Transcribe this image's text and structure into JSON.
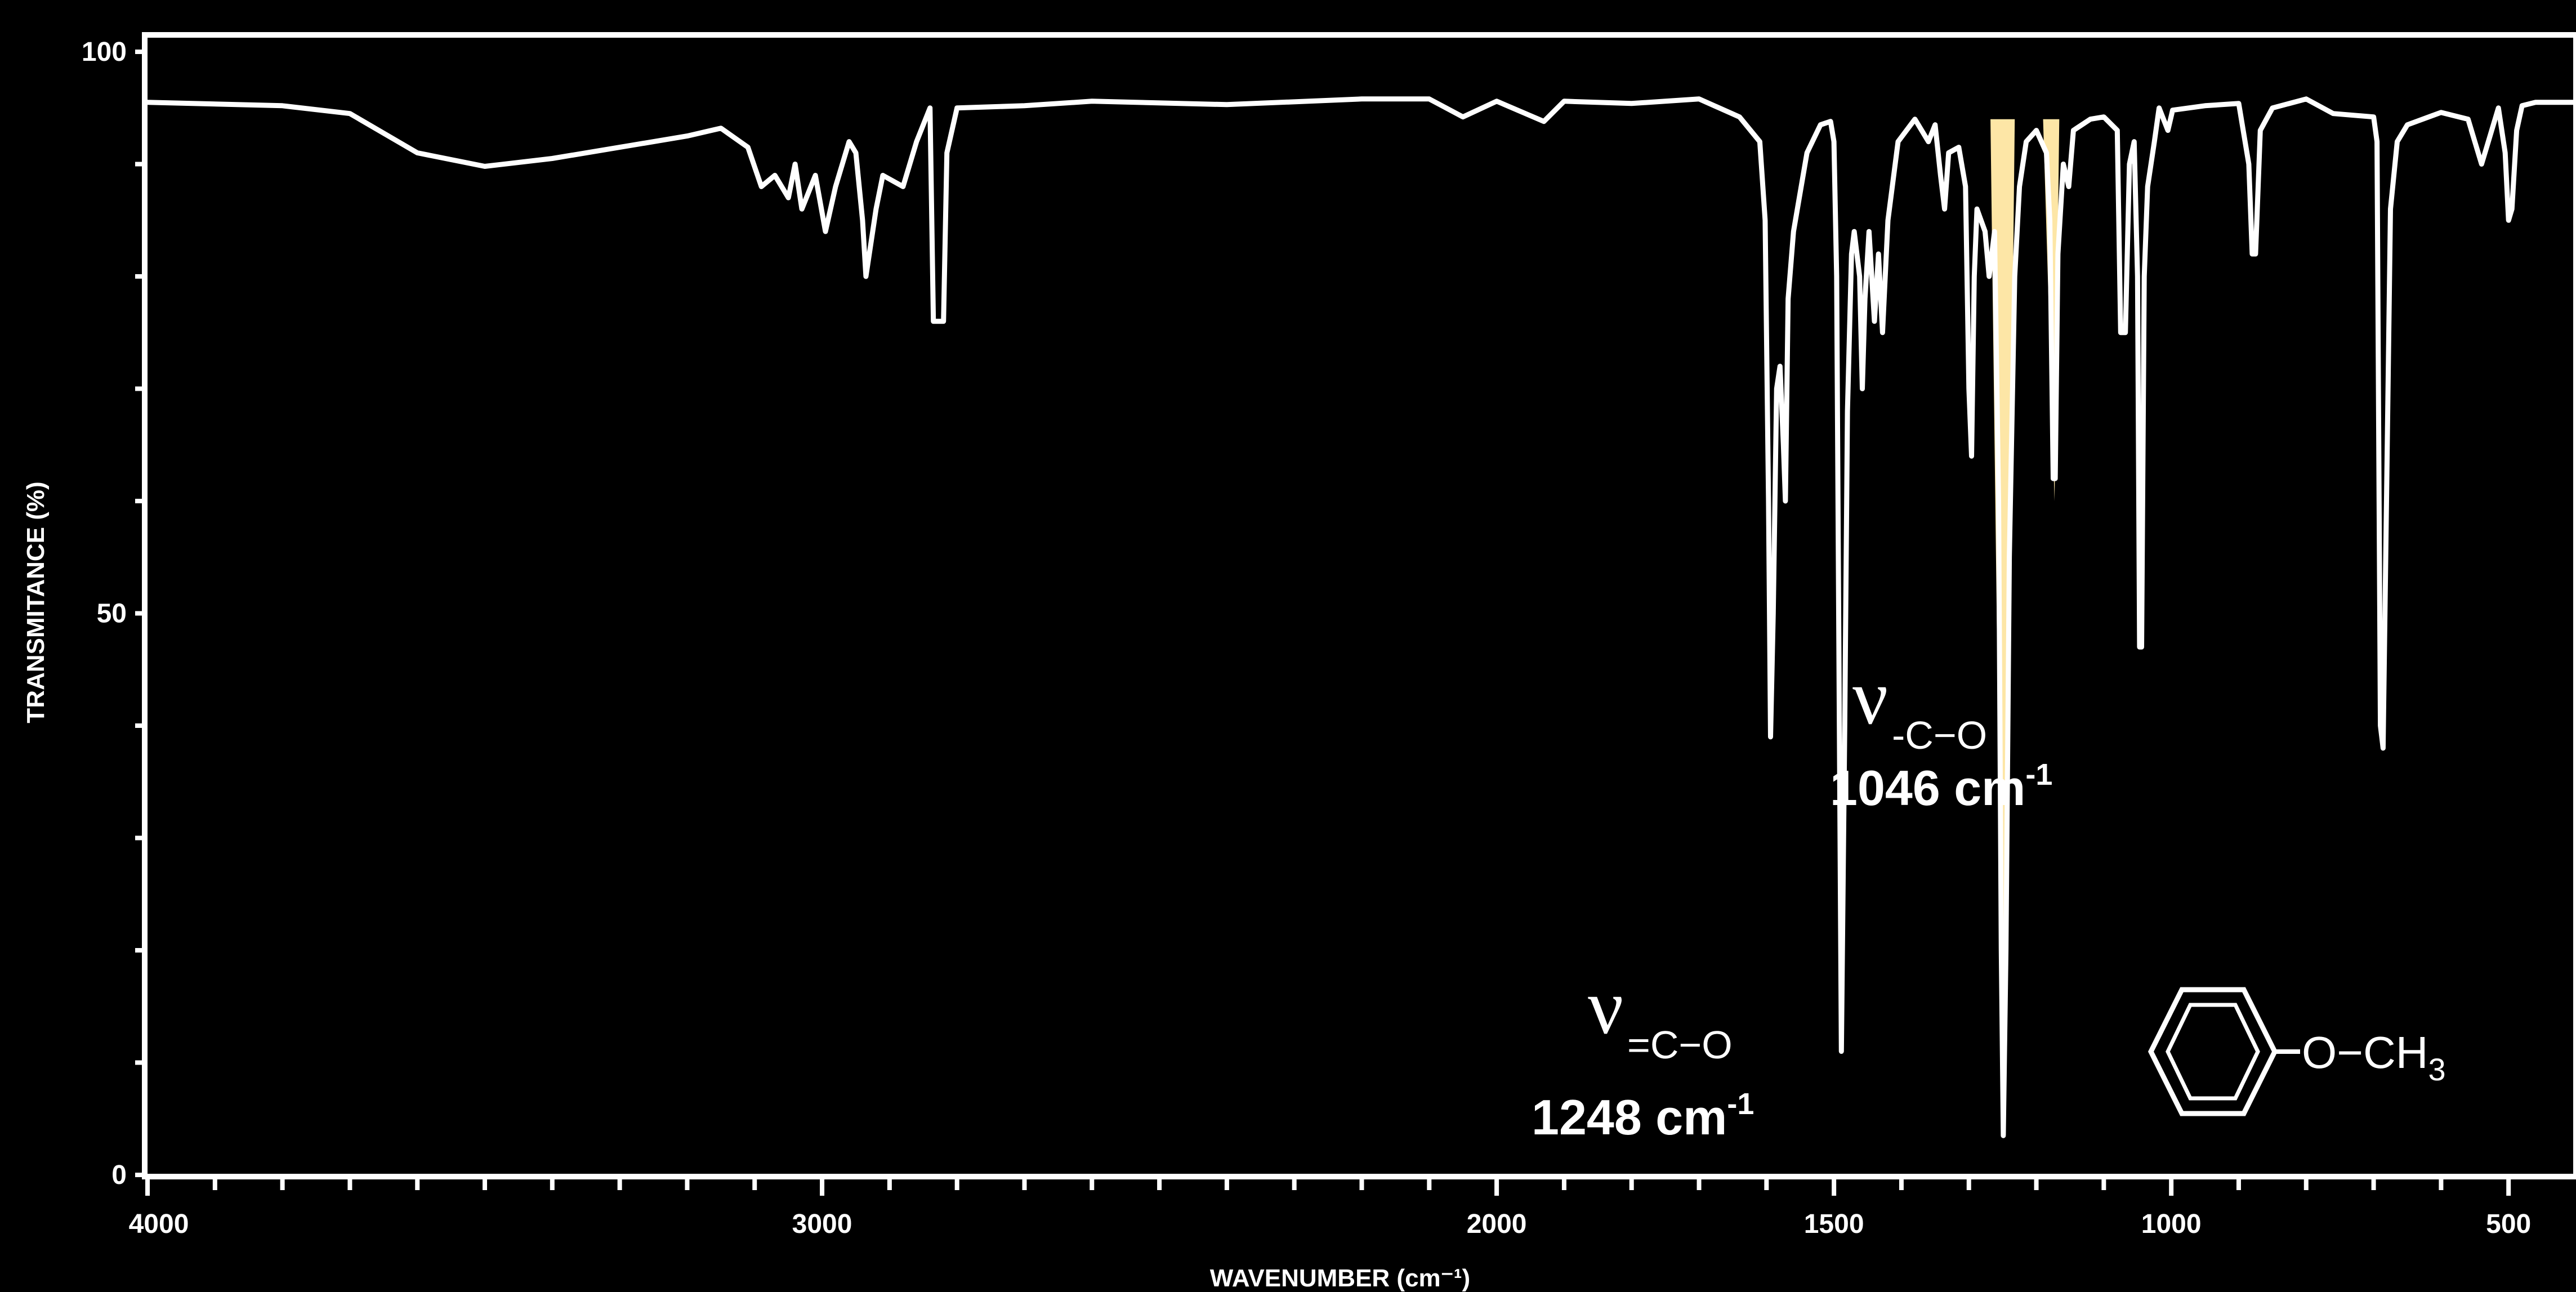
{
  "chart_data": {
    "type": "line",
    "xlabel": "WAVENUMBER (cm⁻¹)",
    "ylabel": "TRANSMITANCE (%)",
    "xlim": [
      4000,
      400
    ],
    "ylim": [
      0,
      100
    ],
    "x_tick_labels": [
      "4000",
      "3000",
      "2000",
      "1500",
      "1000",
      "500"
    ],
    "y_tick_labels": [
      "0",
      "50",
      "100"
    ],
    "grid": false,
    "colors": {
      "background": "#000000",
      "trace": "#ffffff",
      "highlight": "#fde6a6"
    },
    "series": [
      {
        "points": [
          [
            4000,
            95.5
          ],
          [
            3800,
            95.2
          ],
          [
            3700,
            94.5
          ],
          [
            3600,
            91
          ],
          [
            3500,
            89.8
          ],
          [
            3400,
            90.5
          ],
          [
            3300,
            91.5
          ],
          [
            3200,
            92.5
          ],
          [
            3150,
            93.2
          ],
          [
            3110,
            91.5
          ],
          [
            3090,
            88
          ],
          [
            3070,
            89
          ],
          [
            3050,
            87
          ],
          [
            3040,
            90
          ],
          [
            3030,
            86
          ],
          [
            3010,
            89
          ],
          [
            2995,
            84
          ],
          [
            2980,
            88
          ],
          [
            2960,
            92
          ],
          [
            2950,
            91
          ],
          [
            2940,
            85
          ],
          [
            2935,
            80
          ],
          [
            2920,
            86
          ],
          [
            2910,
            89
          ],
          [
            2880,
            88
          ],
          [
            2860,
            92
          ],
          [
            2840,
            95
          ],
          [
            2835,
            76
          ],
          [
            2820,
            76
          ],
          [
            2815,
            91
          ],
          [
            2800,
            95
          ],
          [
            2700,
            95.2
          ],
          [
            2600,
            95.6
          ],
          [
            2400,
            95.3
          ],
          [
            2200,
            95.8
          ],
          [
            2100,
            95.8
          ],
          [
            2050,
            94.2
          ],
          [
            2000,
            95.6
          ],
          [
            1930,
            93.8
          ],
          [
            1900,
            95.6
          ],
          [
            1800,
            95.4
          ],
          [
            1700,
            95.8
          ],
          [
            1640,
            94.2
          ],
          [
            1610,
            92
          ],
          [
            1602,
            85
          ],
          [
            1597,
            60
          ],
          [
            1594,
            39
          ],
          [
            1590,
            50
          ],
          [
            1585,
            70
          ],
          [
            1580,
            72
          ],
          [
            1575,
            65
          ],
          [
            1572,
            60
          ],
          [
            1568,
            78
          ],
          [
            1560,
            84
          ],
          [
            1540,
            91
          ],
          [
            1520,
            93.5
          ],
          [
            1505,
            93.8
          ],
          [
            1500,
            92
          ],
          [
            1496,
            80
          ],
          [
            1492,
            40
          ],
          [
            1489,
            11
          ],
          [
            1484,
            40
          ],
          [
            1480,
            68
          ],
          [
            1474,
            82
          ],
          [
            1470,
            84
          ],
          [
            1462,
            80
          ],
          [
            1458,
            70
          ],
          [
            1454,
            78
          ],
          [
            1448,
            84
          ],
          [
            1440,
            76
          ],
          [
            1434,
            82
          ],
          [
            1428,
            75
          ],
          [
            1420,
            85
          ],
          [
            1405,
            92
          ],
          [
            1380,
            94
          ],
          [
            1360,
            92
          ],
          [
            1350,
            93.5
          ],
          [
            1342,
            89
          ],
          [
            1336,
            86
          ],
          [
            1330,
            91
          ],
          [
            1315,
            91.5
          ],
          [
            1305,
            88
          ],
          [
            1300,
            70
          ],
          [
            1296,
            64
          ],
          [
            1292,
            80
          ],
          [
            1288,
            86
          ],
          [
            1282,
            85
          ],
          [
            1276,
            84
          ],
          [
            1270,
            80
          ],
          [
            1262,
            84
          ],
          [
            1256,
            60
          ],
          [
            1252,
            20
          ],
          [
            1249,
            3.5
          ],
          [
            1245,
            20
          ],
          [
            1240,
            55
          ],
          [
            1232,
            80
          ],
          [
            1225,
            88
          ],
          [
            1215,
            92
          ],
          [
            1200,
            93
          ],
          [
            1185,
            91
          ],
          [
            1180,
            85
          ],
          [
            1175,
            62
          ],
          [
            1172,
            62
          ],
          [
            1168,
            82
          ],
          [
            1160,
            90
          ],
          [
            1152,
            88
          ],
          [
            1145,
            93
          ],
          [
            1120,
            94
          ],
          [
            1100,
            94.2
          ],
          [
            1080,
            93
          ],
          [
            1075,
            75
          ],
          [
            1068,
            75
          ],
          [
            1062,
            90
          ],
          [
            1055,
            92
          ],
          [
            1050,
            80
          ],
          [
            1047,
            47
          ],
          [
            1044,
            47
          ],
          [
            1040,
            80
          ],
          [
            1035,
            88
          ],
          [
            1025,
            92
          ],
          [
            1018,
            95
          ],
          [
            1005,
            93
          ],
          [
            998,
            94.8
          ],
          [
            950,
            95.2
          ],
          [
            900,
            95.4
          ],
          [
            885,
            90
          ],
          [
            880,
            82
          ],
          [
            875,
            82
          ],
          [
            868,
            93
          ],
          [
            850,
            95
          ],
          [
            800,
            95.8
          ],
          [
            760,
            94.5
          ],
          [
            700,
            94.2
          ],
          [
            695,
            92
          ],
          [
            690,
            40
          ],
          [
            686,
            38
          ],
          [
            682,
            55
          ],
          [
            675,
            86
          ],
          [
            665,
            92
          ],
          [
            650,
            93.5
          ],
          [
            600,
            94.6
          ],
          [
            560,
            94
          ],
          [
            540,
            90
          ],
          [
            530,
            92
          ],
          [
            515,
            95
          ],
          [
            505,
            91
          ],
          [
            500,
            85
          ],
          [
            495,
            86
          ],
          [
            488,
            93
          ],
          [
            480,
            95.2
          ],
          [
            460,
            95.5
          ],
          [
            400,
            95.5
          ]
        ]
      }
    ],
    "highlight_bands": [
      {
        "x_from": 1268,
        "x_to": 1232,
        "y_from": 94,
        "apex_x": 1249,
        "apex_y": 3.5
      },
      {
        "x_from": 1190,
        "x_to": 1166,
        "y_from": 94,
        "apex_x": 1173,
        "apex_y": 60
      }
    ],
    "annotations": [
      {
        "symbol": "ν",
        "subscript": "=C−O",
        "value": "1248 cm",
        "unit_sup": "-1"
      },
      {
        "symbol": "ν",
        "subscript": "-C−O",
        "value": "1046 cm",
        "unit_sup": "-1"
      }
    ],
    "structure": {
      "group_text": "O−CH",
      "subscript": "3"
    }
  }
}
